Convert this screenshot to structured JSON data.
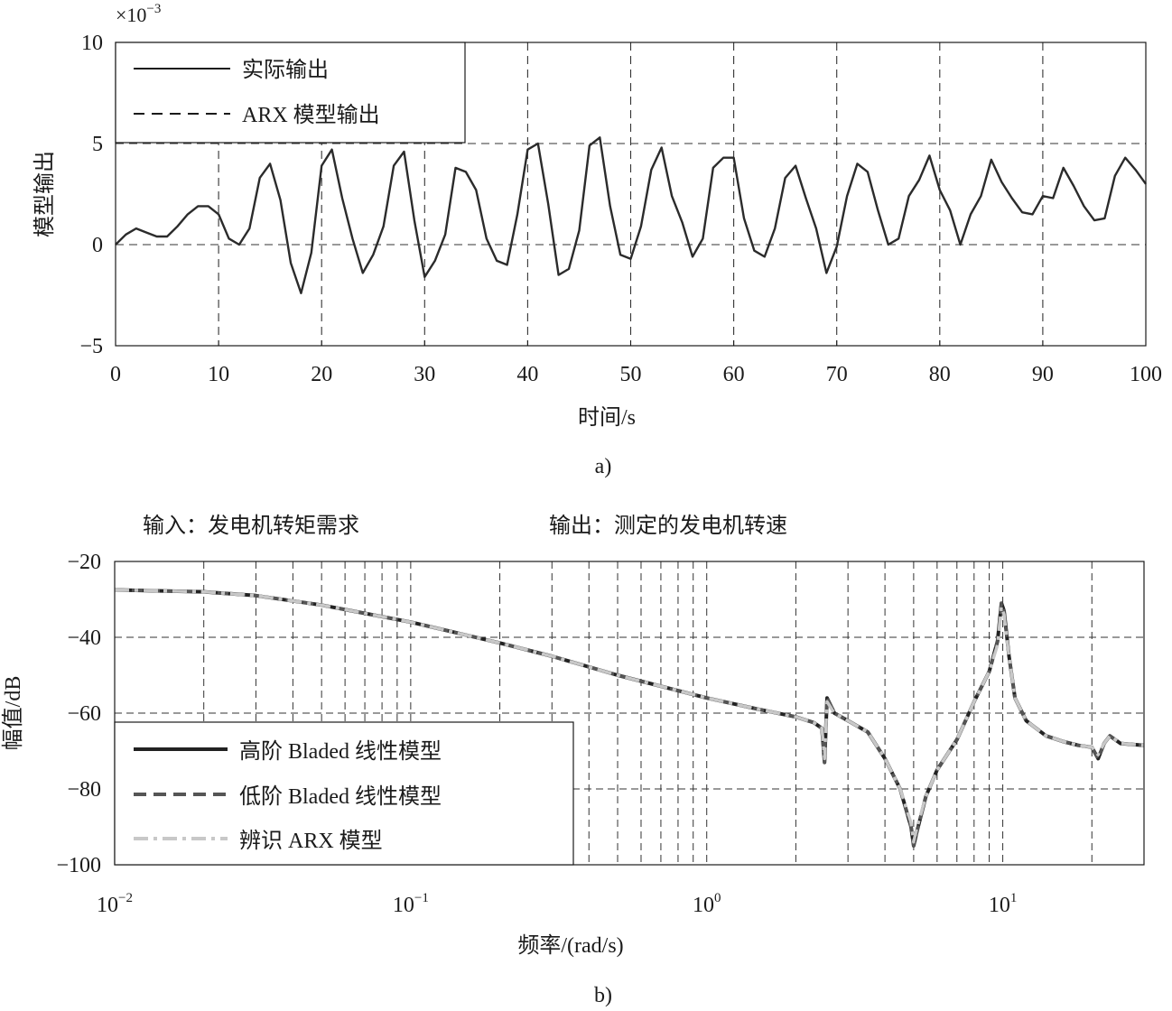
{
  "chart_data": [
    {
      "type": "line",
      "panel_label": "a)",
      "multiplier_label": "×10",
      "multiplier_exp": "−3",
      "xlabel": "时间/s",
      "ylabel": "模型输出",
      "xlim": [
        0,
        100
      ],
      "ylim": [
        -5,
        10
      ],
      "x_ticks": [
        0,
        10,
        20,
        30,
        40,
        50,
        60,
        70,
        80,
        90,
        100
      ],
      "x_tick_labels": [
        "0",
        "10",
        "20",
        "30",
        "40",
        "50",
        "60",
        "70",
        "80",
        "90",
        "100"
      ],
      "y_ticks": [
        -5,
        0,
        5,
        10
      ],
      "y_tick_labels": [
        "−5",
        "0",
        "5",
        "10"
      ],
      "grid": "dashed",
      "legend_position": "top-left",
      "legend": [
        {
          "label": "实际输出",
          "style": "solid"
        },
        {
          "label": "ARX 模型输出",
          "style": "dashed"
        }
      ],
      "series": [
        {
          "name": "实际输出",
          "color": "#2b2b2b",
          "x": [
            0,
            1,
            2,
            3,
            4,
            5,
            6,
            7,
            8,
            9,
            10,
            11,
            12,
            13,
            14,
            15,
            16,
            17,
            18,
            19,
            20,
            21,
            22,
            23,
            24,
            25,
            26,
            27,
            28,
            29,
            30,
            31,
            32,
            33,
            34,
            35,
            36,
            37,
            38,
            39,
            40,
            41,
            42,
            43,
            44,
            45,
            46,
            47,
            48,
            49,
            50,
            51,
            52,
            53,
            54,
            55,
            56,
            57,
            58,
            59,
            60,
            61,
            62,
            63,
            64,
            65,
            66,
            67,
            68,
            69,
            70,
            71,
            72,
            73,
            74,
            75,
            76,
            77,
            78,
            79,
            80,
            81,
            82,
            83,
            84,
            85,
            86,
            87,
            88,
            89,
            90,
            91,
            92,
            93,
            94,
            95,
            96,
            97,
            98,
            99,
            100
          ],
          "y": [
            0.0,
            0.5,
            0.8,
            0.6,
            0.4,
            0.4,
            0.9,
            1.5,
            1.9,
            1.9,
            1.5,
            0.3,
            0.0,
            0.8,
            3.3,
            4.0,
            2.2,
            -0.9,
            -2.4,
            -0.4,
            3.9,
            4.7,
            2.3,
            0.3,
            -1.4,
            -0.5,
            0.9,
            3.9,
            4.6,
            1.2,
            -1.6,
            -0.8,
            0.5,
            3.8,
            3.6,
            2.7,
            0.3,
            -0.8,
            -1.0,
            1.5,
            4.7,
            5.0,
            2.0,
            -1.5,
            -1.2,
            0.7,
            4.9,
            5.3,
            1.9,
            -0.5,
            -0.7,
            0.9,
            3.7,
            4.8,
            2.4,
            1.1,
            -0.6,
            0.3,
            3.8,
            4.3,
            4.3,
            1.3,
            -0.3,
            -0.6,
            0.8,
            3.3,
            3.9,
            2.3,
            0.8,
            -1.4,
            -0.1,
            2.4,
            4.0,
            3.6,
            1.7,
            0.0,
            0.3,
            2.4,
            3.2,
            4.4,
            2.7,
            1.7,
            0.0,
            1.5,
            2.4,
            4.2,
            3.1,
            2.3,
            1.6,
            1.5,
            2.4,
            2.3,
            3.8,
            2.9,
            1.9,
            1.2,
            1.3,
            3.4,
            4.3,
            3.7,
            3.0
          ]
        }
      ]
    },
    {
      "type": "line",
      "panel_label": "b)",
      "title_input": "输入：发电机转矩需求",
      "title_output": "输出：测定的发电机转速",
      "xlabel": "频率/(rad/s)",
      "ylabel": "幅值/dB",
      "x_scale": "log",
      "xlim": [
        0.01,
        30
      ],
      "ylim": [
        -100,
        -20
      ],
      "x_ticks": [
        0.01,
        0.1,
        1,
        10
      ],
      "x_tick_labels": [
        {
          "base": "10",
          "exp": "−2"
        },
        {
          "base": "10",
          "exp": "−1"
        },
        {
          "base": "10",
          "exp": "0"
        },
        {
          "base": "10",
          "exp": "1"
        }
      ],
      "y_ticks": [
        -100,
        -80,
        -60,
        -40,
        -20
      ],
      "y_tick_labels": [
        "−100",
        "−80",
        "−60",
        "−40",
        "−20"
      ],
      "grid": "dashed",
      "legend_position": "bottom-left",
      "legend": [
        {
          "label": "高阶 Bladed 线性模型",
          "style": "solid"
        },
        {
          "label": "低阶 Bladed 线性模型",
          "style": "dashed"
        },
        {
          "label": "辨识 ARX 模型",
          "style": "dash-dot"
        }
      ],
      "series": [
        {
          "name": "高阶 Bladed 线性模型",
          "color": "#222222",
          "x": [
            0.01,
            0.02,
            0.03,
            0.05,
            0.1,
            0.2,
            0.3,
            0.5,
            1.0,
            1.5,
            2.0,
            2.3,
            2.45,
            2.5,
            2.55,
            2.7,
            3.0,
            3.5,
            4.0,
            4.5,
            4.9,
            5.0,
            5.1,
            5.5,
            6.0,
            7.0,
            8.0,
            9.0,
            9.6,
            9.9,
            10.1,
            10.5,
            11.0,
            12.0,
            14.0,
            16.0,
            18.0,
            20.0,
            21.0,
            22.0,
            23.0,
            25.0,
            30.0
          ],
          "y": [
            -27.5,
            -28,
            -29,
            -31.5,
            -36,
            -41.5,
            -45,
            -50,
            -56,
            -59,
            -61,
            -62.5,
            -64,
            -73,
            -56,
            -60,
            -62,
            -65,
            -72,
            -80,
            -90,
            -95,
            -92,
            -82,
            -75,
            -67,
            -57,
            -49,
            -41,
            -31,
            -33,
            -45,
            -56,
            -62,
            -66,
            -67.5,
            -68.5,
            -69,
            -72,
            -68,
            -66,
            -68,
            -68.5
          ]
        },
        {
          "name": "低阶 Bladed 线性模型",
          "color": "#555555",
          "x": [
            0.01,
            0.02,
            0.03,
            0.05,
            0.1,
            0.2,
            0.3,
            0.5,
            1.0,
            1.5,
            2.0,
            2.3,
            2.45,
            2.5,
            2.55,
            2.7,
            3.0,
            3.5,
            4.0,
            4.5,
            4.9,
            5.0,
            5.1,
            5.5,
            6.0,
            7.0,
            8.0,
            9.0,
            9.6,
            9.9,
            10.1,
            10.5,
            11.0,
            12.0,
            14.0,
            16.0,
            18.0,
            20.0,
            21.0,
            22.0,
            23.0,
            25.0,
            30.0
          ],
          "y": [
            -27.5,
            -28,
            -29,
            -31.5,
            -36,
            -41.5,
            -45,
            -50,
            -56,
            -59,
            -61,
            -62.5,
            -64,
            -73,
            -56,
            -60,
            -62,
            -65,
            -72,
            -80,
            -90,
            -95,
            -92,
            -82,
            -75,
            -67,
            -57,
            -49,
            -41,
            -31,
            -33,
            -45,
            -56,
            -62,
            -66,
            -67.5,
            -68.5,
            -69,
            -72,
            -68,
            -66,
            -68,
            -68.5
          ]
        },
        {
          "name": "辨识 ARX 模型",
          "color": "#c8c8c8",
          "x": [
            0.01,
            0.02,
            0.03,
            0.05,
            0.1,
            0.2,
            0.3,
            0.5,
            1.0,
            1.5,
            2.0,
            2.3,
            2.45,
            2.5,
            2.55,
            2.7,
            3.0,
            3.5,
            4.0,
            4.5,
            4.9,
            5.0,
            5.1,
            5.5,
            6.0,
            7.0,
            8.0,
            9.0,
            9.6,
            9.9,
            10.1,
            10.5,
            11.0,
            12.0,
            14.0,
            16.0,
            18.0,
            20.0,
            21.0,
            22.0,
            23.0,
            25.0,
            30.0
          ],
          "y": [
            -27.5,
            -28,
            -29,
            -31.5,
            -36,
            -41.5,
            -45,
            -50,
            -56,
            -59,
            -61,
            -62.5,
            -64,
            -72,
            -57,
            -60,
            -62,
            -65,
            -72,
            -80,
            -89,
            -94,
            -91,
            -82,
            -75,
            -67,
            -57,
            -49,
            -42,
            -32,
            -34,
            -45,
            -56,
            -62,
            -66,
            -67.5,
            -68.5,
            -69,
            -71,
            -68,
            -66,
            -68,
            -68.5
          ]
        }
      ]
    }
  ]
}
